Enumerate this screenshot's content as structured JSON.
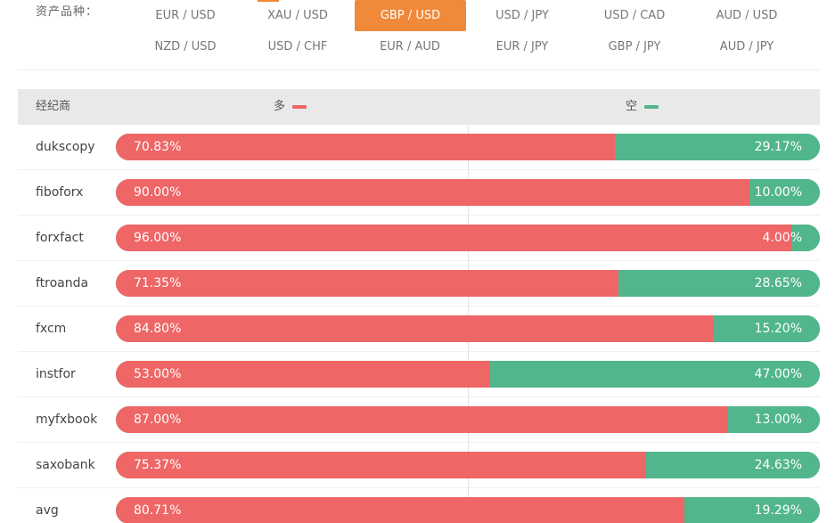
{
  "asset_filter": {
    "label": "资产品种：",
    "selected": "GBP / USD",
    "row1": [
      "EUR / USD",
      "XAU / USD",
      "GBP / USD",
      "USD / JPY",
      "USD / CAD",
      "AUD / USD"
    ],
    "row2": [
      "NZD / USD",
      "USD / CHF",
      "EUR / AUD",
      "EUR / JPY",
      "GBP / JPY",
      "AUD / JPY"
    ]
  },
  "table": {
    "header": {
      "broker": "经纪商",
      "long": "多",
      "short": "空"
    },
    "colors": {
      "long": "#ee6666",
      "short": "#52b68c",
      "accent": "#f0893a"
    },
    "rows": [
      {
        "broker": "dukscopy",
        "long": "70.83%",
        "short": "29.17%",
        "long_value": 70.83
      },
      {
        "broker": "fiboforx",
        "long": "90.00%",
        "short": "10.00%",
        "long_value": 90.0
      },
      {
        "broker": "forxfact",
        "long": "96.00%",
        "short": "4.00%",
        "long_value": 96.0
      },
      {
        "broker": "ftroanda",
        "long": "71.35%",
        "short": "28.65%",
        "long_value": 71.35
      },
      {
        "broker": "fxcm",
        "long": "84.80%",
        "short": "15.20%",
        "long_value": 84.8
      },
      {
        "broker": "instfor",
        "long": "53.00%",
        "short": "47.00%",
        "long_value": 53.0
      },
      {
        "broker": "myfxbook",
        "long": "87.00%",
        "short": "13.00%",
        "long_value": 87.0
      },
      {
        "broker": "saxobank",
        "long": "75.37%",
        "short": "24.63%",
        "long_value": 75.37
      },
      {
        "broker": "avg",
        "long": "80.71%",
        "short": "19.29%",
        "long_value": 80.71
      }
    ]
  }
}
